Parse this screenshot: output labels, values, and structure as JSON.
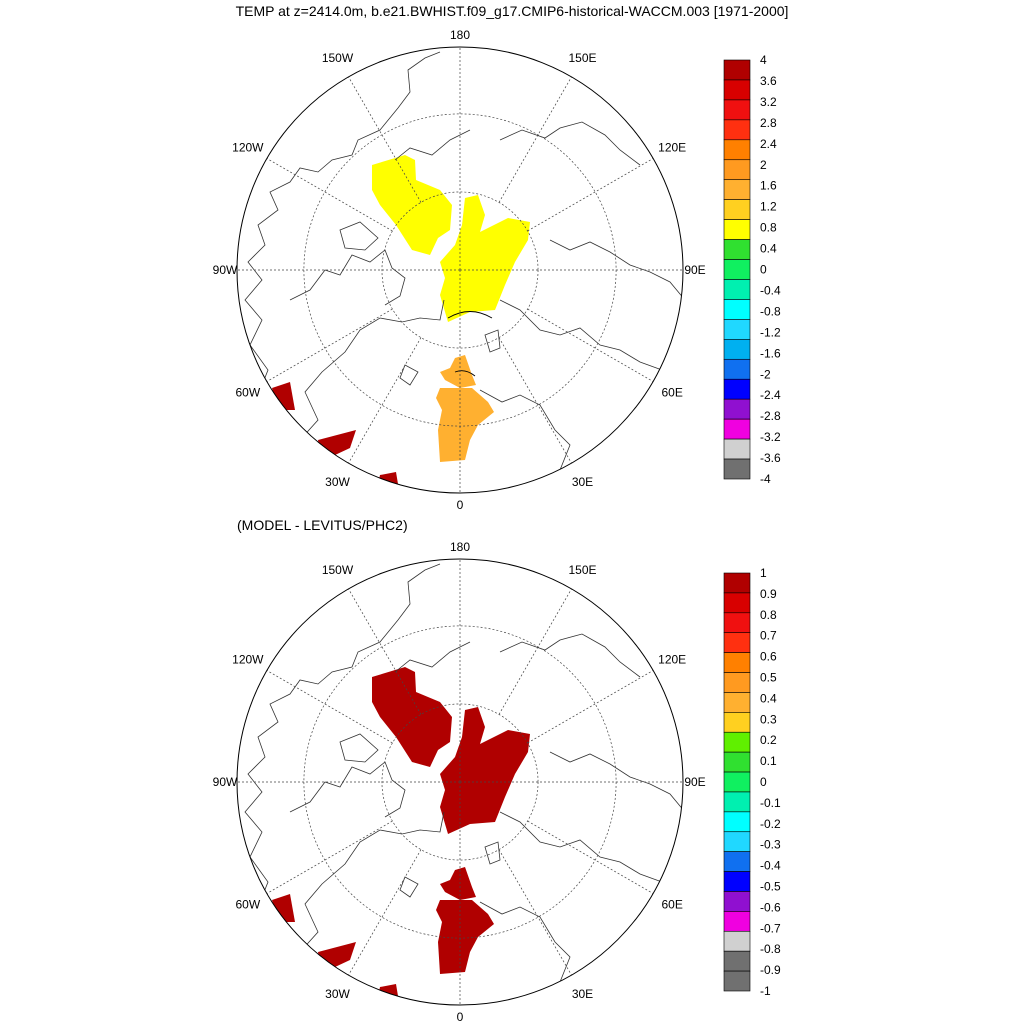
{
  "title": "TEMP at z=2414.0m, b.e21.BWHIST.f09_g17.CMIP6-historical-WACCM.003 [1971-2000]",
  "subtitle": "(MODEL - LEVITUS/PHC2)",
  "lon_labels": [
    "180",
    "150E",
    "120E",
    "90E",
    "60E",
    "30E",
    "0",
    "30W",
    "60W",
    "90W",
    "120W",
    "150W"
  ],
  "panels": [
    {
      "name": "model-temperature",
      "colorbar": {
        "labels": [
          "4",
          "3.6",
          "3.2",
          "2.8",
          "2.4",
          "2",
          "1.6",
          "1.2",
          "0.8",
          "0.4",
          "0",
          "-0.4",
          "-0.8",
          "-1.2",
          "-1.6",
          "-2",
          "-2.4",
          "-2.8",
          "-3.2",
          "-3.6",
          "-4"
        ],
        "colors": [
          "#b00000",
          "#d80000",
          "#f01010",
          "#ff3010",
          "#ff8000",
          "#ff9a20",
          "#ffb030",
          "#ffd020",
          "#ffff00",
          "#30e030",
          "#10f060",
          "#00f0b0",
          "#00ffff",
          "#20d8ff",
          "#00b0f0",
          "#1070f0",
          "#0000ff",
          "#9010d0",
          "#f000e0",
          "#d0d0d0",
          "#707070"
        ]
      },
      "regions": [
        {
          "name": "canada-basin-anomaly",
          "color": "#ffff00"
        },
        {
          "name": "eurasian-basin-anomaly",
          "color": "#ffff00"
        },
        {
          "name": "fram-strait-anomaly",
          "color": "#ffb030"
        },
        {
          "name": "greenland-sea-anomaly",
          "color": "#ffb030"
        },
        {
          "name": "labrador-sea-anomaly",
          "color": "#b00000"
        },
        {
          "name": "irminger-sea-anomaly",
          "color": "#b00000"
        },
        {
          "name": "iceland-basin-anomaly",
          "color": "#b00000"
        }
      ]
    },
    {
      "name": "model-minus-levitus",
      "colorbar": {
        "labels": [
          "1",
          "0.9",
          "0.8",
          "0.7",
          "0.6",
          "0.5",
          "0.4",
          "0.3",
          "0.2",
          "0.1",
          "0",
          "-0.1",
          "-0.2",
          "-0.3",
          "-0.4",
          "-0.5",
          "-0.6",
          "-0.7",
          "-0.8",
          "-0.9",
          "-1"
        ],
        "colors": [
          "#b00000",
          "#d80000",
          "#f01010",
          "#ff3010",
          "#ff8000",
          "#ff9a20",
          "#ffb030",
          "#ffd020",
          "#60f000",
          "#30e030",
          "#10f060",
          "#00f0b0",
          "#00ffff",
          "#20d8ff",
          "#1070f0",
          "#0000ff",
          "#9010d0",
          "#f000e0",
          "#d0d0d0",
          "#707070",
          "#707070"
        ]
      },
      "regions": [
        {
          "name": "canada-basin-difference",
          "color": "#b00000"
        },
        {
          "name": "eurasian-basin-difference",
          "color": "#b00000"
        },
        {
          "name": "fram-strait-difference",
          "color": "#b00000"
        },
        {
          "name": "greenland-sea-difference",
          "color": "#b00000"
        },
        {
          "name": "labrador-sea-difference",
          "color": "#b00000"
        },
        {
          "name": "irminger-sea-difference",
          "color": "#b00000"
        },
        {
          "name": "iceland-basin-difference",
          "color": "#b00000"
        }
      ]
    }
  ]
}
